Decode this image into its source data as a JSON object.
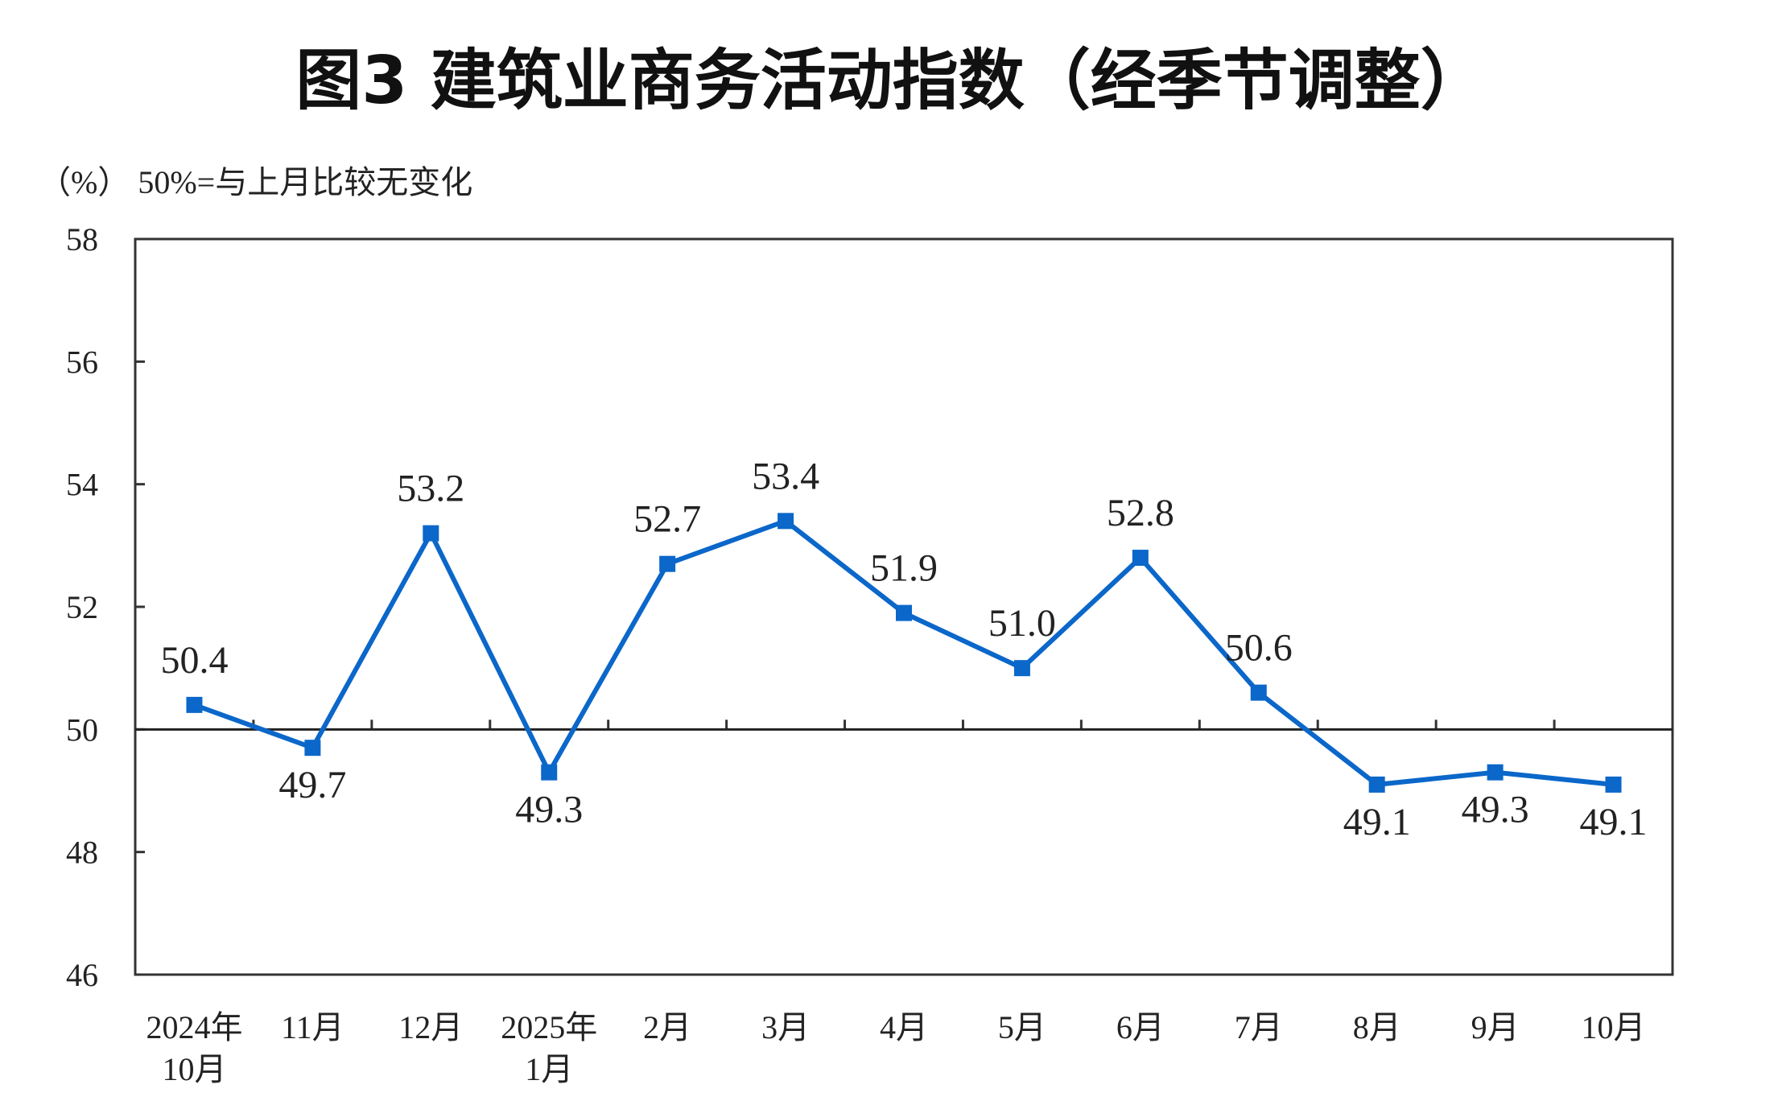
{
  "chart_data": {
    "type": "line",
    "title": "图3  建筑业商务活动指数（经季节调整）",
    "unit_note": "（%）  50%=与上月比较无变化",
    "categories": [
      [
        "2024年",
        "10月"
      ],
      [
        "11月"
      ],
      [
        "12月"
      ],
      [
        "2025年",
        "1月"
      ],
      [
        "2月"
      ],
      [
        "3月"
      ],
      [
        "4月"
      ],
      [
        "5月"
      ],
      [
        "6月"
      ],
      [
        "7月"
      ],
      [
        "8月"
      ],
      [
        "9月"
      ],
      [
        "10月"
      ]
    ],
    "values": [
      50.4,
      49.7,
      53.2,
      49.3,
      52.7,
      53.4,
      51.9,
      51.0,
      52.8,
      50.6,
      49.1,
      49.3,
      49.1
    ],
    "value_labels": [
      "50.4",
      "49.7",
      "53.2",
      "49.3",
      "52.7",
      "53.4",
      "51.9",
      "51.0",
      "52.8",
      "50.6",
      "49.1",
      "49.3",
      "49.1"
    ],
    "ylim": [
      46,
      58
    ],
    "yticks": [
      46,
      48,
      50,
      52,
      54,
      56,
      58
    ],
    "reference_line": 50,
    "grid": false,
    "marker": "square",
    "series_color": "#0b67c9"
  }
}
